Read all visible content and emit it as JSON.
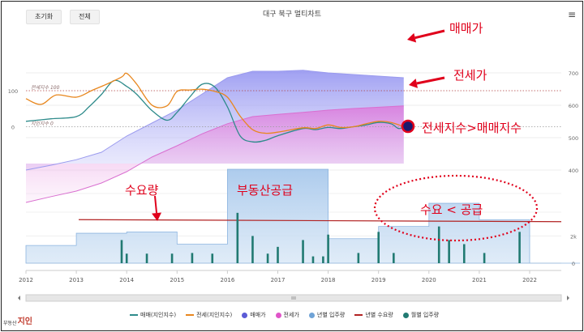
{
  "toolbar": {
    "reset_label": "초기화",
    "all_label": "전체"
  },
  "chart_title": "대구 북구 멀티차트",
  "menu_icon": "hamburger-menu-icon",
  "annotations": {
    "sale_price": "매매가",
    "jeonse_price": "전세가",
    "index_compare": "전세지수>매매지수",
    "demand": "수요량",
    "supply": "부동산공급",
    "demand_vs_supply": "수요 < 공급"
  },
  "logo": {
    "small": "부동산",
    "big": "지인"
  },
  "legend": [
    {
      "label": "매매(지인지수)",
      "color": "#2e8b8b",
      "kind": "line"
    },
    {
      "label": "전세(지인지수)",
      "color": "#e8871e",
      "kind": "line"
    },
    {
      "label": "매매가",
      "color": "#5b5bd6",
      "kind": "dot"
    },
    {
      "label": "전세가",
      "color": "#e055c9",
      "kind": "dot"
    },
    {
      "label": "년별 입주량",
      "color": "#6fa3d6",
      "kind": "dot"
    },
    {
      "label": "년별 수요량",
      "color": "#b22222",
      "kind": "line"
    },
    {
      "label": "월별 입주량",
      "color": "#217a72",
      "kind": "dot"
    }
  ],
  "chart_data": {
    "type": "line",
    "x_ticks": [
      "2012",
      "2013",
      "2014",
      "2015",
      "2016",
      "2017",
      "2018",
      "2019",
      "2020",
      "2021",
      "2022"
    ],
    "upper_panel": {
      "left_axis_ticks": [
        "100",
        "0"
      ],
      "right_axis_ticks": [
        "700",
        "600",
        "500",
        "400"
      ],
      "reference_lines": [
        {
          "label": "전세지수 100",
          "value": 100
        },
        {
          "label": "지인지수 0",
          "value": 0
        }
      ],
      "series": [
        {
          "name": "매매가",
          "color": "#5b5bd6",
          "x": [
            2012.0,
            2012.5,
            2013.0,
            2013.5,
            2014.0,
            2014.5,
            2015.0,
            2015.5,
            2016.0,
            2016.5,
            2017.0,
            2017.5,
            2018.0,
            2018.5,
            2019.0,
            2019.5
          ],
          "values": [
            400,
            415,
            432,
            455,
            505,
            545,
            585,
            635,
            685,
            705,
            705,
            708,
            700,
            695,
            690,
            685
          ]
        },
        {
          "name": "전세가",
          "color": "#e055c9",
          "x": [
            2012.0,
            2012.5,
            2013.0,
            2013.5,
            2014.0,
            2014.5,
            2015.0,
            2015.5,
            2016.0,
            2016.5,
            2017.0,
            2017.5,
            2018.0,
            2018.5,
            2019.0,
            2019.5
          ],
          "values": [
            300,
            318,
            335,
            360,
            395,
            440,
            475,
            512,
            543,
            565,
            572,
            578,
            585,
            590,
            594,
            598
          ]
        },
        {
          "name": "매매(지인지수)",
          "color": "#2e8b8b",
          "x": [
            2012.0,
            2012.5,
            2013.0,
            2013.25,
            2013.5,
            2013.75,
            2014.0,
            2014.2,
            2014.5,
            2014.8,
            2015.0,
            2015.25,
            2015.5,
            2015.75,
            2016.0,
            2016.25,
            2016.5,
            2016.75,
            2017.0,
            2017.5,
            2017.75,
            2018.0,
            2018.25,
            2018.5,
            2018.75,
            2019.0,
            2019.25,
            2019.4,
            2019.55
          ],
          "values": [
            15,
            22,
            28,
            55,
            90,
            128,
            112,
            90,
            45,
            18,
            40,
            82,
            118,
            110,
            55,
            -25,
            -42,
            -38,
            -25,
            -5,
            -8,
            -2,
            -5,
            0,
            5,
            12,
            8,
            -5,
            2
          ]
        },
        {
          "name": "전세(지인지수)",
          "color": "#e8871e",
          "x": [
            2012.0,
            2012.3,
            2012.6,
            2013.0,
            2013.3,
            2013.6,
            2013.9,
            2014.0,
            2014.2,
            2014.5,
            2014.8,
            2015.0,
            2015.25,
            2015.5,
            2015.75,
            2016.0,
            2016.25,
            2016.5,
            2016.75,
            2017.0,
            2017.5,
            2017.75,
            2018.0,
            2018.25,
            2018.5,
            2018.75,
            2019.0,
            2019.25,
            2019.5
          ],
          "values": [
            78,
            62,
            88,
            82,
            100,
            118,
            138,
            148,
            118,
            60,
            58,
            98,
            102,
            104,
            98,
            82,
            30,
            -8,
            -18,
            -15,
            -3,
            -5,
            5,
            -2,
            0,
            8,
            15,
            12,
            0
          ]
        }
      ]
    },
    "lower_panel": {
      "right_axis_ticks": [
        "2k",
        "0"
      ],
      "series": [
        {
          "name": "년별 입주량",
          "color": "#6fa3d6",
          "x": [
            "2012",
            "2013",
            "2014",
            "2015",
            "2016",
            "2017",
            "2018",
            "2019",
            "2020",
            "2021",
            "2022"
          ],
          "values": [
            1300,
            2200,
            2300,
            1400,
            6900,
            6900,
            1800,
            2700,
            4400,
            3200,
            0
          ]
        },
        {
          "name": "년별 수요량",
          "color": "#b22222",
          "x": [
            "2012",
            "2022"
          ],
          "values": [
            3200,
            3050
          ]
        },
        {
          "name": "월별 입주량",
          "color": "#217a72",
          "x": [
            2013.9,
            2014.0,
            2014.4,
            2014.9,
            2015.3,
            2015.7,
            2016.2,
            2016.5,
            2016.8,
            2017.0,
            2017.5,
            2017.7,
            2017.9,
            2018.0,
            2018.6,
            2019.0,
            2019.3,
            2020.2,
            2020.4,
            2020.7,
            2021.1,
            2021.8
          ],
          "values": [
            1700,
            700,
            700,
            700,
            750,
            700,
            3700,
            2000,
            700,
            1200,
            1700,
            500,
            500,
            2100,
            750,
            2300,
            750,
            2700,
            1700,
            1400,
            750,
            2300
          ]
        }
      ]
    }
  }
}
